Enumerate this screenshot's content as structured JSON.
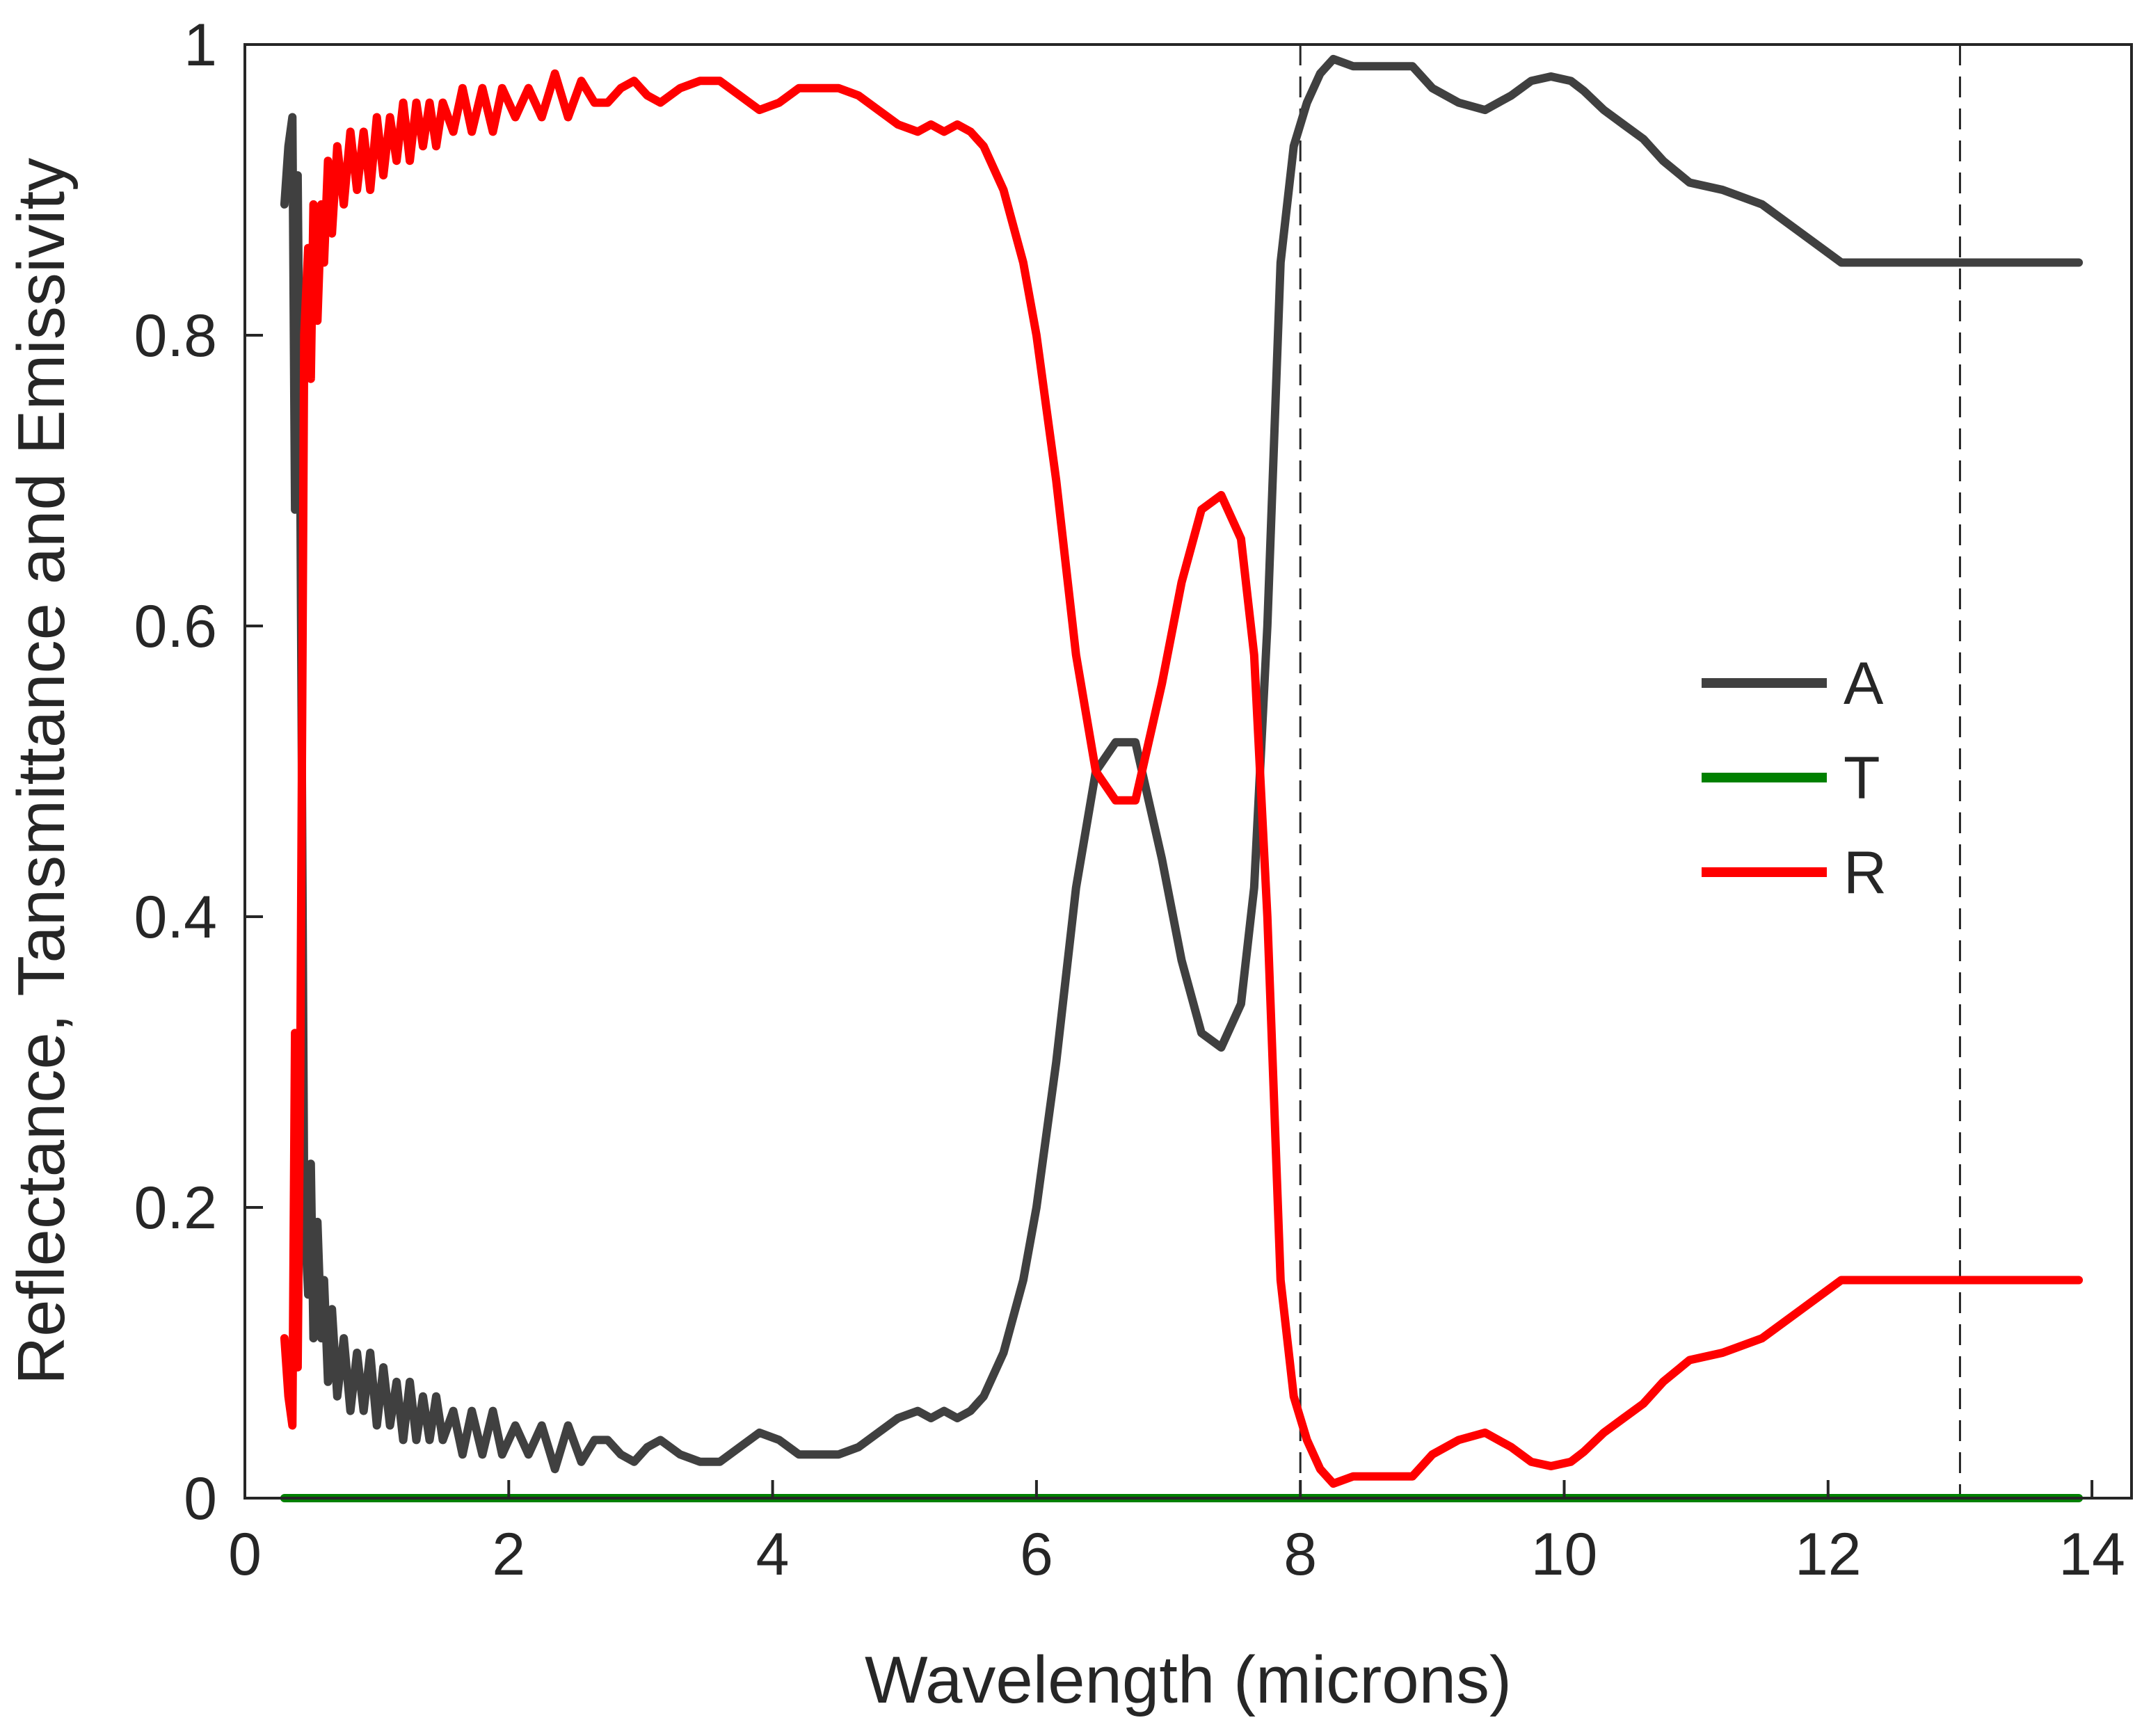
{
  "chart_data": {
    "type": "line",
    "title": "",
    "xlabel": "Wavelength (microns)",
    "ylabel": "Reflectance, Tansmittance and Emissivity",
    "xlim": [
      0,
      14.3
    ],
    "ylim": [
      0,
      1
    ],
    "xticks": [
      0,
      2,
      4,
      6,
      8,
      10,
      12,
      14
    ],
    "xtick_labels": [
      "0",
      "2",
      "4",
      "6",
      "8",
      "10",
      "12",
      "14"
    ],
    "yticks": [
      0,
      0.2,
      0.4,
      0.6,
      0.8,
      1
    ],
    "ytick_labels": [
      "0",
      "0.2",
      "0.4",
      "0.6",
      "0.8",
      "1"
    ],
    "grid": false,
    "legend_position": "right",
    "reference_lines": [
      {
        "orientation": "vertical",
        "x": 8,
        "style": "dashed"
      },
      {
        "orientation": "vertical",
        "x": 13,
        "style": "dashed"
      }
    ],
    "series": [
      {
        "name": "A",
        "color": "#404040",
        "x": [
          0.3,
          0.33,
          0.36,
          0.38,
          0.4,
          0.42,
          0.45,
          0.48,
          0.5,
          0.52,
          0.55,
          0.58,
          0.6,
          0.63,
          0.66,
          0.7,
          0.75,
          0.8,
          0.85,
          0.9,
          0.95,
          1.0,
          1.05,
          1.1,
          1.15,
          1.2,
          1.25,
          1.3,
          1.35,
          1.4,
          1.45,
          1.5,
          1.58,
          1.65,
          1.72,
          1.8,
          1.88,
          1.95,
          2.05,
          2.15,
          2.25,
          2.35,
          2.45,
          2.55,
          2.65,
          2.75,
          2.85,
          2.95,
          3.05,
          3.15,
          3.3,
          3.45,
          3.6,
          3.75,
          3.9,
          4.05,
          4.2,
          4.35,
          4.5,
          4.65,
          4.8,
          4.95,
          5.1,
          5.2,
          5.3,
          5.4,
          5.5,
          5.6,
          5.75,
          5.9,
          6.0,
          6.15,
          6.3,
          6.45,
          6.6,
          6.75,
          6.85,
          6.95,
          7.1,
          7.25,
          7.4,
          7.55,
          7.65,
          7.75,
          7.85,
          7.95,
          8.05,
          8.15,
          8.25,
          8.4,
          8.55,
          8.7,
          8.85,
          9.0,
          9.2,
          9.4,
          9.6,
          9.75,
          9.9,
          10.05,
          10.15,
          10.3,
          10.45,
          10.6,
          10.75,
          10.95,
          11.2,
          11.5,
          11.8,
          12.1,
          12.3,
          12.6,
          12.9,
          13.2,
          13.5,
          13.75,
          13.9
        ],
        "y": [
          0.89,
          0.93,
          0.95,
          0.68,
          0.91,
          0.7,
          0.2,
          0.14,
          0.23,
          0.11,
          0.19,
          0.11,
          0.15,
          0.08,
          0.13,
          0.07,
          0.11,
          0.06,
          0.1,
          0.06,
          0.1,
          0.05,
          0.09,
          0.05,
          0.08,
          0.04,
          0.08,
          0.04,
          0.07,
          0.04,
          0.07,
          0.04,
          0.06,
          0.03,
          0.06,
          0.03,
          0.06,
          0.03,
          0.05,
          0.03,
          0.05,
          0.02,
          0.05,
          0.025,
          0.04,
          0.04,
          0.03,
          0.025,
          0.035,
          0.04,
          0.03,
          0.025,
          0.025,
          0.035,
          0.045,
          0.04,
          0.03,
          0.03,
          0.03,
          0.035,
          0.045,
          0.055,
          0.06,
          0.055,
          0.06,
          0.055,
          0.06,
          0.07,
          0.1,
          0.15,
          0.2,
          0.3,
          0.42,
          0.5,
          0.52,
          0.52,
          0.48,
          0.44,
          0.37,
          0.32,
          0.31,
          0.34,
          0.42,
          0.6,
          0.85,
          0.93,
          0.96,
          0.98,
          0.99,
          0.985,
          0.985,
          0.985,
          0.985,
          0.97,
          0.96,
          0.955,
          0.965,
          0.975,
          0.978,
          0.975,
          0.968,
          0.955,
          0.945,
          0.935,
          0.92,
          0.905,
          0.9,
          0.89,
          0.87,
          0.85,
          0.85,
          0.85,
          0.85,
          0.85,
          0.85,
          0.85,
          0.85
        ]
      },
      {
        "name": "T",
        "color": "#008000",
        "x": [
          0.3,
          13.9
        ],
        "y": [
          0,
          0
        ]
      },
      {
        "name": "R",
        "color": "#ff0000",
        "x": [
          0.3,
          0.33,
          0.36,
          0.38,
          0.4,
          0.42,
          0.45,
          0.48,
          0.5,
          0.52,
          0.55,
          0.58,
          0.6,
          0.63,
          0.66,
          0.7,
          0.75,
          0.8,
          0.85,
          0.9,
          0.95,
          1.0,
          1.05,
          1.1,
          1.15,
          1.2,
          1.25,
          1.3,
          1.35,
          1.4,
          1.45,
          1.5,
          1.58,
          1.65,
          1.72,
          1.8,
          1.88,
          1.95,
          2.05,
          2.15,
          2.25,
          2.35,
          2.45,
          2.55,
          2.65,
          2.75,
          2.85,
          2.95,
          3.05,
          3.15,
          3.3,
          3.45,
          3.6,
          3.75,
          3.9,
          4.05,
          4.2,
          4.35,
          4.5,
          4.65,
          4.8,
          4.95,
          5.1,
          5.2,
          5.3,
          5.4,
          5.5,
          5.6,
          5.75,
          5.9,
          6.0,
          6.15,
          6.3,
          6.45,
          6.6,
          6.75,
          6.85,
          6.95,
          7.1,
          7.25,
          7.4,
          7.55,
          7.65,
          7.75,
          7.85,
          7.95,
          8.05,
          8.15,
          8.25,
          8.4,
          8.55,
          8.7,
          8.85,
          9.0,
          9.2,
          9.4,
          9.6,
          9.75,
          9.9,
          10.05,
          10.15,
          10.3,
          10.45,
          10.6,
          10.75,
          10.95,
          11.2,
          11.5,
          11.8,
          12.1,
          12.3,
          12.6,
          12.9,
          13.2,
          13.5,
          13.75,
          13.9
        ],
        "y": [
          0.11,
          0.07,
          0.05,
          0.32,
          0.09,
          0.3,
          0.8,
          0.86,
          0.77,
          0.89,
          0.81,
          0.89,
          0.85,
          0.92,
          0.87,
          0.93,
          0.89,
          0.94,
          0.9,
          0.94,
          0.9,
          0.95,
          0.91,
          0.95,
          0.92,
          0.96,
          0.92,
          0.96,
          0.93,
          0.96,
          0.93,
          0.96,
          0.94,
          0.97,
          0.94,
          0.97,
          0.94,
          0.97,
          0.95,
          0.97,
          0.95,
          0.98,
          0.95,
          0.975,
          0.96,
          0.96,
          0.97,
          0.975,
          0.965,
          0.96,
          0.97,
          0.975,
          0.975,
          0.965,
          0.955,
          0.96,
          0.97,
          0.97,
          0.97,
          0.965,
          0.955,
          0.945,
          0.94,
          0.945,
          0.94,
          0.945,
          0.94,
          0.93,
          0.9,
          0.85,
          0.8,
          0.7,
          0.58,
          0.5,
          0.48,
          0.48,
          0.52,
          0.56,
          0.63,
          0.68,
          0.69,
          0.66,
          0.58,
          0.4,
          0.15,
          0.07,
          0.04,
          0.02,
          0.01,
          0.015,
          0.015,
          0.015,
          0.015,
          0.03,
          0.04,
          0.045,
          0.035,
          0.025,
          0.022,
          0.025,
          0.032,
          0.045,
          0.055,
          0.065,
          0.08,
          0.095,
          0.1,
          0.11,
          0.13,
          0.15,
          0.15,
          0.15,
          0.15,
          0.15,
          0.15,
          0.15,
          0.15
        ]
      }
    ]
  }
}
